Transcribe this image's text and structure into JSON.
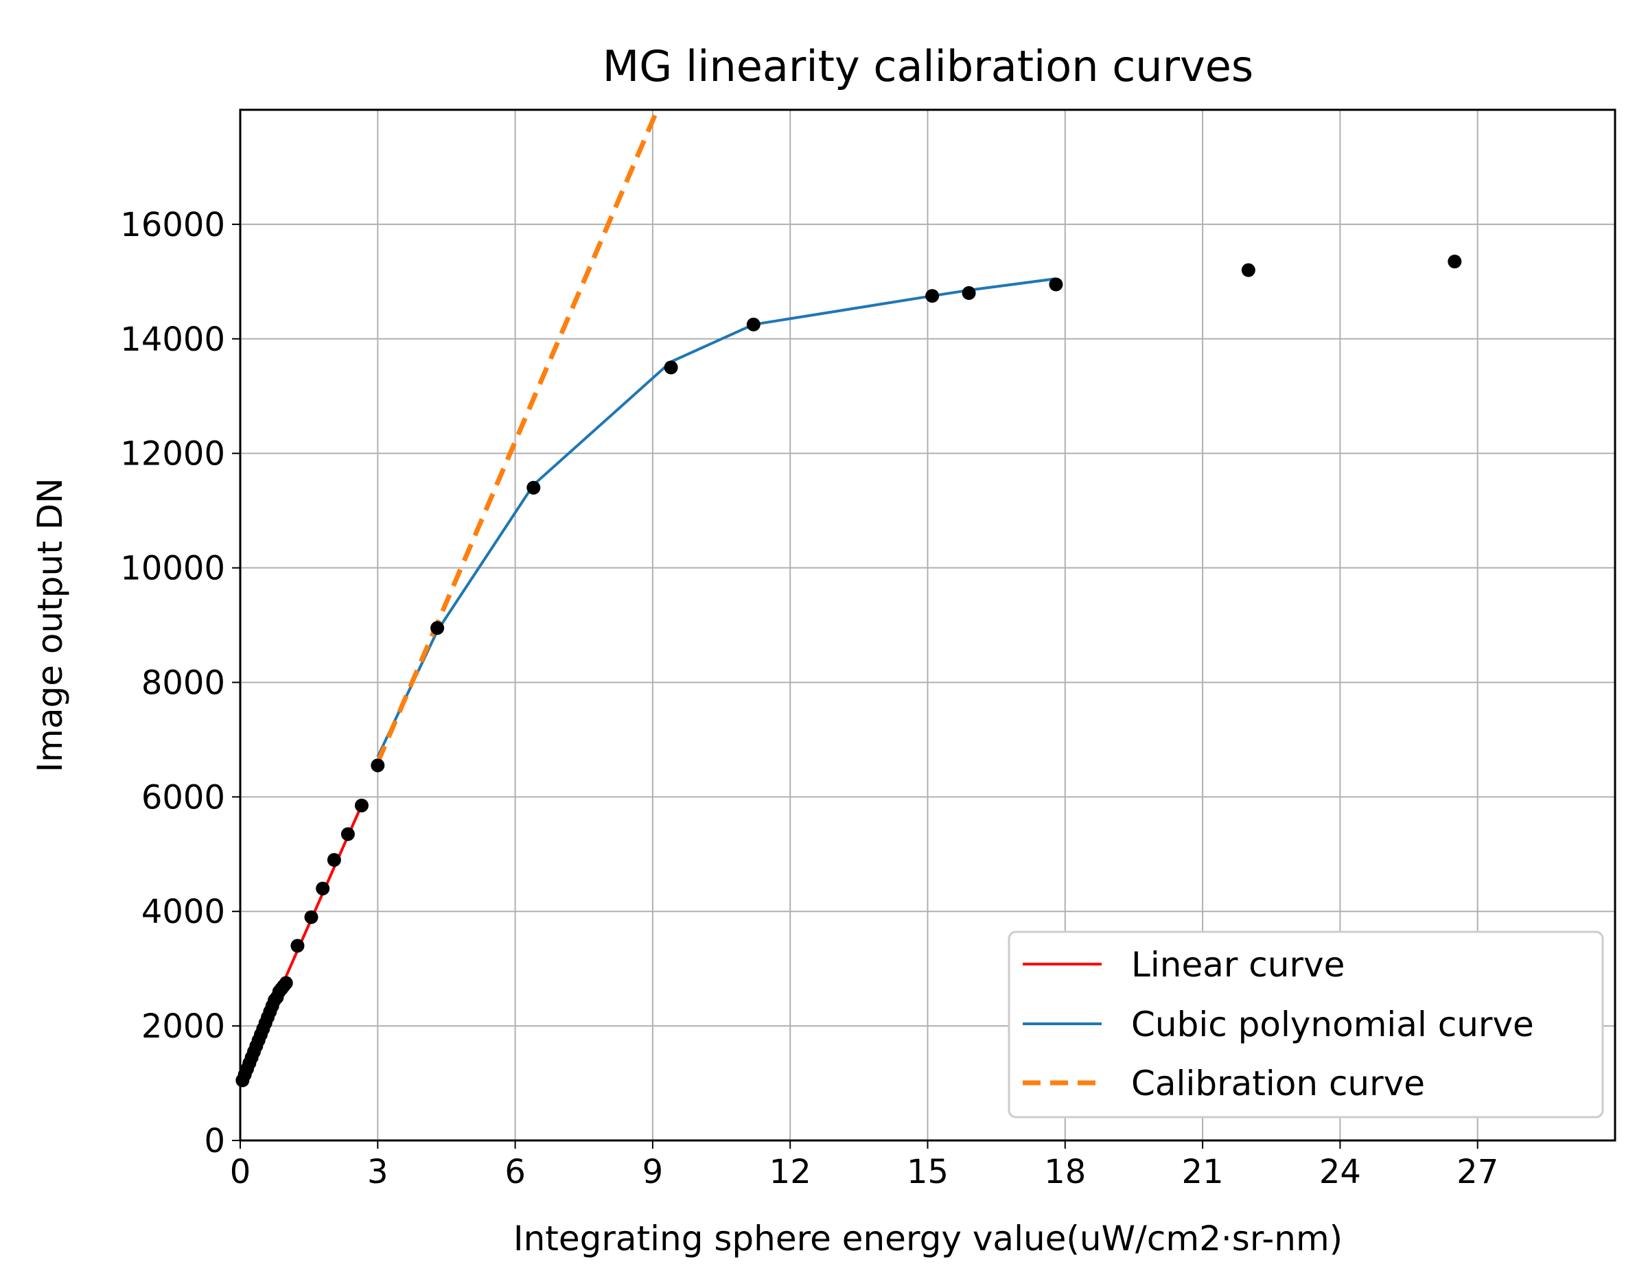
{
  "chart_data": {
    "type": "line",
    "title": "MG linearity calibration curves",
    "xlabel": "Integrating sphere energy value(uW/cm2·sr-nm)",
    "ylabel": "Image output DN",
    "xlim": [
      0,
      30
    ],
    "ylim": [
      0,
      18000
    ],
    "grid": true,
    "x_ticks": [
      0,
      3,
      6,
      9,
      12,
      15,
      18,
      21,
      24,
      27
    ],
    "y_ticks": [
      0,
      2000,
      4000,
      6000,
      8000,
      10000,
      12000,
      14000,
      16000
    ],
    "legend_position": "lower-right",
    "series": [
      {
        "name": "Linear curve",
        "color": "#ff0000",
        "style": "solid",
        "x": [
          0.0,
          2.7
        ],
        "y": [
          1050,
          5950
        ]
      },
      {
        "name": "Cubic polynomial curve",
        "color": "#1f77b4",
        "style": "solid",
        "x": [
          3.0,
          4.3,
          6.4,
          9.4,
          11.2,
          15.1,
          15.9,
          17.8
        ],
        "y": [
          6700,
          8900,
          11450,
          13600,
          14250,
          14750,
          14850,
          15050
        ]
      },
      {
        "name": "Calibration curve",
        "color": "#ff7f0e",
        "style": "dashed",
        "x": [
          3.0,
          9.1
        ],
        "y": [
          6600,
          18000
        ]
      }
    ],
    "scatter": {
      "color": "#000000",
      "x": [
        0.05,
        0.1,
        0.15,
        0.2,
        0.25,
        0.3,
        0.35,
        0.4,
        0.45,
        0.5,
        0.55,
        0.6,
        0.65,
        0.7,
        0.75,
        0.8,
        0.85,
        0.9,
        0.95,
        1.0,
        1.25,
        1.55,
        1.8,
        2.05,
        2.35,
        2.65,
        3.0,
        4.3,
        6.4,
        9.4,
        11.2,
        15.1,
        15.9,
        17.8,
        22.0,
        26.5
      ],
      "y": [
        1050,
        1150,
        1250,
        1350,
        1450,
        1550,
        1650,
        1750,
        1850,
        1950,
        2050,
        2150,
        2250,
        2350,
        2450,
        2500,
        2600,
        2650,
        2700,
        2750,
        3400,
        3900,
        4400,
        4900,
        5350,
        5850,
        6550,
        8950,
        11400,
        13500,
        14250,
        14750,
        14800,
        14950,
        15200,
        15350
      ]
    }
  }
}
